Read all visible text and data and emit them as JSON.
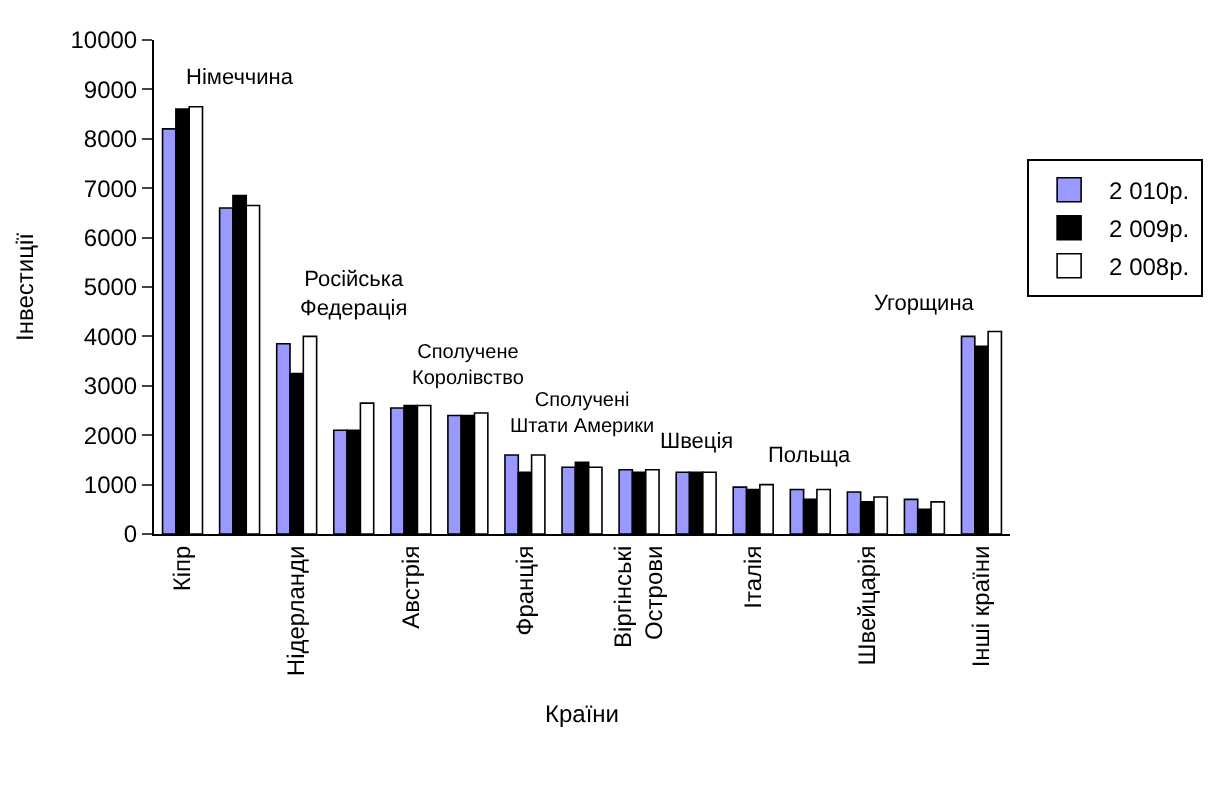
{
  "chart_data": {
    "type": "bar",
    "xlabel": "Країни",
    "ylabel": "Інвестиції",
    "categories": [
      "Кіпр",
      "Німеччина",
      "Нідерланди",
      "Російська Федерація",
      "Австрія",
      "Сполучене Королівство",
      "Франція",
      "Сполучені Штати Америки",
      "Віргінські Острови",
      "Швеція",
      "Італія",
      "Польща",
      "Швейцарія",
      "Угорщина",
      "Інші країни"
    ],
    "series": [
      {
        "name": "2 010р.",
        "color": "#9999ff",
        "values": [
          8200,
          6600,
          3850,
          2100,
          2550,
          2400,
          1600,
          1350,
          1300,
          1250,
          950,
          900,
          850,
          700,
          4000
        ]
      },
      {
        "name": "2 009р.",
        "color": "#000000",
        "values": [
          8600,
          6850,
          3250,
          2100,
          2600,
          2400,
          1250,
          1450,
          1250,
          1250,
          900,
          700,
          650,
          500,
          3800
        ]
      },
      {
        "name": "2 008р.",
        "color": "#ffffff",
        "values": [
          8650,
          6650,
          4000,
          2650,
          2600,
          2450,
          1600,
          1350,
          1300,
          1250,
          1000,
          900,
          750,
          650,
          4100
        ]
      }
    ],
    "ylim": [
      0,
      10000
    ],
    "yticks": [
      0,
      1000,
      2000,
      3000,
      4000,
      5000,
      6000,
      7000,
      8000,
      9000,
      10000
    ],
    "legend": "right"
  }
}
